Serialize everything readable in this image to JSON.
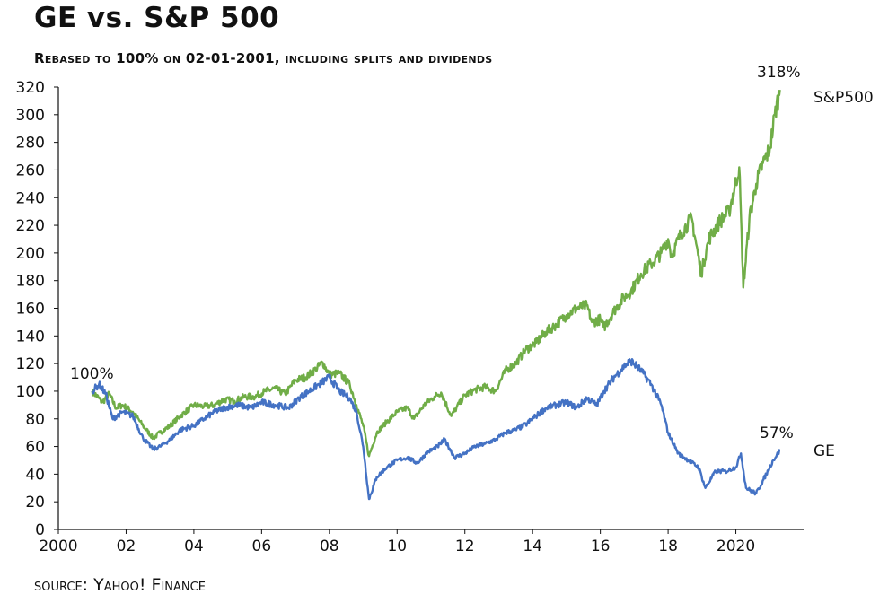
{
  "chart_data": {
    "type": "line",
    "title": "GE vs. S&P 500",
    "subtitle": "Rebased to 100% on 02-01-2001, including splits and dividends",
    "source": "source: Yahoo! Finance",
    "xlabel": "",
    "ylabel": "",
    "xlim": [
      2000,
      2022
    ],
    "ylim": [
      0,
      320
    ],
    "x_ticks": [
      2000,
      2002,
      2004,
      2006,
      2008,
      2010,
      2012,
      2014,
      2016,
      2018,
      2020
    ],
    "x_tick_labels": [
      "2000",
      "02",
      "04",
      "06",
      "08",
      "10",
      "12",
      "14",
      "16",
      "18",
      "2020"
    ],
    "y_ticks": [
      0,
      20,
      40,
      60,
      80,
      100,
      120,
      140,
      160,
      180,
      200,
      220,
      240,
      260,
      280,
      300,
      320
    ],
    "grid": false,
    "series": [
      {
        "name": "S&P500",
        "color": "#70ad47",
        "end_label": "318%",
        "x": [
          2001.0,
          2001.3,
          2001.5,
          2001.7,
          2001.9,
          2002.2,
          2002.5,
          2002.8,
          2003.0,
          2003.3,
          2003.6,
          2004.0,
          2004.3,
          2004.6,
          2004.9,
          2005.2,
          2005.5,
          2005.8,
          2006.1,
          2006.4,
          2006.7,
          2007.0,
          2007.3,
          2007.6,
          2007.8,
          2008.0,
          2008.3,
          2008.6,
          2008.8,
          2009.0,
          2009.17,
          2009.4,
          2009.7,
          2010.0,
          2010.3,
          2010.5,
          2010.8,
          2011.1,
          2011.3,
          2011.6,
          2011.75,
          2012.0,
          2012.3,
          2012.6,
          2012.9,
          2013.2,
          2013.5,
          2013.8,
          2014.1,
          2014.4,
          2014.7,
          2015.0,
          2015.3,
          2015.6,
          2015.75,
          2016.0,
          2016.1,
          2016.4,
          2016.7,
          2016.9,
          2017.2,
          2017.5,
          2017.8,
          2018.0,
          2018.1,
          2018.4,
          2018.7,
          2018.98,
          2019.2,
          2019.5,
          2019.8,
          2020.1,
          2020.22,
          2020.4,
          2020.6,
          2020.8,
          2021.0,
          2021.15,
          2021.3
        ],
        "values": [
          100,
          92,
          98,
          88,
          90,
          85,
          75,
          66,
          70,
          75,
          82,
          90,
          89,
          90,
          94,
          93,
          96,
          96,
          100,
          102,
          98,
          108,
          110,
          116,
          121,
          112,
          113,
          105,
          90,
          75,
          53,
          70,
          78,
          85,
          88,
          80,
          90,
          96,
          99,
          82,
          88,
          97,
          101,
          103,
          100,
          115,
          120,
          130,
          135,
          143,
          148,
          155,
          160,
          162,
          150,
          152,
          146,
          158,
          168,
          172,
          185,
          192,
          200,
          210,
          198,
          215,
          225,
          185,
          210,
          222,
          230,
          262,
          175,
          225,
          250,
          265,
          275,
          300,
          318
        ]
      },
      {
        "name": "GE",
        "color": "#4472c4",
        "end_label": "57%",
        "x": [
          2001.0,
          2001.2,
          2001.4,
          2001.6,
          2001.9,
          2002.2,
          2002.5,
          2002.8,
          2003.0,
          2003.3,
          2003.6,
          2004.0,
          2004.3,
          2004.6,
          2004.9,
          2005.3,
          2005.7,
          2006.0,
          2006.4,
          2006.8,
          2007.1,
          2007.4,
          2007.7,
          2008.0,
          2008.3,
          2008.6,
          2008.8,
          2009.0,
          2009.17,
          2009.4,
          2009.7,
          2010.0,
          2010.3,
          2010.6,
          2010.9,
          2011.2,
          2011.4,
          2011.7,
          2012.0,
          2012.3,
          2012.6,
          2012.9,
          2013.2,
          2013.5,
          2013.8,
          2014.1,
          2014.4,
          2014.7,
          2015.0,
          2015.3,
          2015.6,
          2015.9,
          2016.1,
          2016.4,
          2016.7,
          2016.9,
          2017.2,
          2017.5,
          2017.8,
          2018.0,
          2018.3,
          2018.6,
          2018.9,
          2019.1,
          2019.4,
          2019.7,
          2020.0,
          2020.15,
          2020.3,
          2020.6,
          2020.9,
          2021.1,
          2021.3
        ],
        "values": [
          100,
          105,
          98,
          80,
          85,
          82,
          66,
          58,
          60,
          65,
          72,
          75,
          80,
          85,
          88,
          90,
          88,
          92,
          90,
          88,
          95,
          100,
          105,
          110,
          100,
          95,
          85,
          60,
          22,
          38,
          45,
          50,
          52,
          48,
          56,
          60,
          65,
          52,
          55,
          60,
          62,
          65,
          70,
          72,
          76,
          82,
          88,
          90,
          92,
          88,
          95,
          90,
          100,
          110,
          118,
          122,
          115,
          105,
          90,
          70,
          55,
          50,
          45,
          30,
          42,
          42,
          45,
          55,
          30,
          26,
          40,
          50,
          57
        ]
      }
    ],
    "annotations": [
      {
        "text": "100%",
        "x": 2001.0,
        "y": 100,
        "series": "start"
      },
      {
        "text": "318%",
        "x": 2021.3,
        "y": 318,
        "series": "S&P500"
      },
      {
        "text": "57%",
        "x": 2021.3,
        "y": 57,
        "series": "GE"
      }
    ],
    "legend": "inline at line ends (right)"
  }
}
